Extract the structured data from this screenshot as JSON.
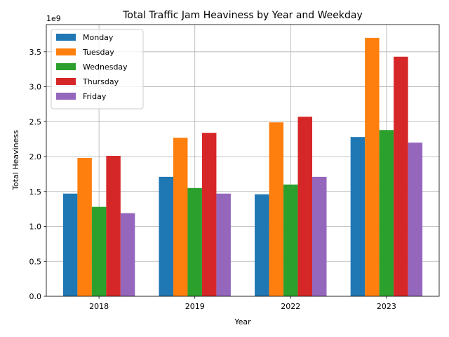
{
  "chart_data": {
    "type": "bar",
    "title": "Total Traffic Jam Heaviness by Year and Weekday",
    "xlabel": "Year",
    "ylabel": "Total Heaviness",
    "y_scale_label": "1e9",
    "categories": [
      "2018",
      "2019",
      "2022",
      "2023"
    ],
    "ylim": [
      0,
      3.89
    ],
    "yticks": [
      "0.0",
      "0.5",
      "1.0",
      "1.5",
      "2.0",
      "2.5",
      "3.0",
      "3.5"
    ],
    "grid": true,
    "legend_position": "top-left",
    "series": [
      {
        "name": "Monday",
        "color": "#1f77b4",
        "values": [
          1.47,
          1.71,
          1.46,
          2.28
        ]
      },
      {
        "name": "Tuesday",
        "color": "#ff7f0e",
        "values": [
          1.98,
          2.27,
          2.49,
          3.7
        ]
      },
      {
        "name": "Wednesday",
        "color": "#2ca02c",
        "values": [
          1.28,
          1.55,
          1.6,
          2.38
        ]
      },
      {
        "name": "Thursday",
        "color": "#d62728",
        "values": [
          2.01,
          2.34,
          2.57,
          3.43
        ]
      },
      {
        "name": "Friday",
        "color": "#9467bd",
        "values": [
          1.19,
          1.47,
          1.71,
          2.2
        ]
      }
    ]
  }
}
